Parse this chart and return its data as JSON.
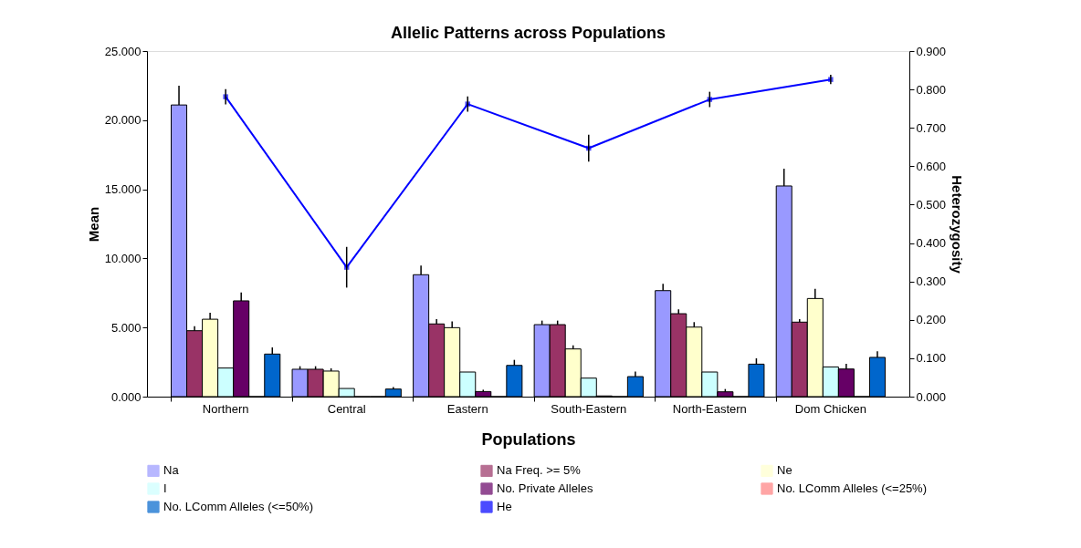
{
  "chart_data": {
    "type": "bar",
    "title": "Allelic Patterns across Populations",
    "xlabel": "Populations",
    "ylabel": "Mean",
    "y2label": "Heterozygosity",
    "categories": [
      "Northern",
      "Central",
      "Eastern",
      "South-Eastern",
      "North-Eastern",
      "Dom Chicken"
    ],
    "series": [
      {
        "name": "Na",
        "color": "#9999ff",
        "values": [
          21.1,
          1.98,
          8.82,
          5.21,
          7.67,
          15.24
        ],
        "errors": [
          [
            21.1,
            22.5
          ],
          [
            1.98,
            2.2
          ],
          [
            8.82,
            9.48
          ],
          [
            5.21,
            5.5
          ],
          [
            7.67,
            8.16
          ],
          [
            15.24,
            16.49
          ]
        ]
      },
      {
        "name": "Na Freq. >= 5%",
        "color": "#993366",
        "values": [
          4.77,
          1.98,
          5.26,
          5.21,
          6.0,
          5.39
        ],
        "errors": [
          [
            4.77,
            5.1
          ],
          [
            1.98,
            2.2
          ],
          [
            5.26,
            5.6
          ],
          [
            5.21,
            5.5
          ],
          [
            6.0,
            6.31
          ],
          [
            5.39,
            5.6
          ]
        ]
      },
      {
        "name": "Ne",
        "color": "#ffffcc",
        "values": [
          5.6,
          1.85,
          4.99,
          3.45,
          5.03,
          7.1
        ],
        "errors": [
          [
            5.6,
            6.07
          ],
          [
            1.85,
            2.05
          ],
          [
            4.99,
            5.45
          ],
          [
            3.45,
            3.71
          ],
          [
            5.03,
            5.39
          ],
          [
            7.1,
            7.8
          ]
        ]
      },
      {
        "name": "I",
        "color": "#ccffff",
        "values": [
          2.07,
          0.59,
          1.78,
          1.34,
          1.78,
          2.15
        ]
      },
      {
        "name": "No. Private Alleles",
        "color": "#660066",
        "values": [
          6.93,
          0,
          0.37,
          0.05,
          0.35,
          2.0
        ],
        "errors": [
          [
            6.93,
            7.54
          ],
          null,
          [
            0.37,
            0.5
          ],
          null,
          [
            0.35,
            0.55
          ],
          [
            2.0,
            2.37
          ]
        ]
      },
      {
        "name": "No. LComm Alleles (<=25%)",
        "color": "#ff8080",
        "values": [
          0,
          0,
          0,
          0,
          0,
          0
        ]
      },
      {
        "name": "No. LComm Alleles (<=50%)",
        "color": "#0066cc",
        "values": [
          3.08,
          0.55,
          2.26,
          1.45,
          2.35,
          2.84
        ],
        "errors": [
          [
            3.08,
            3.56
          ],
          [
            0.55,
            0.7
          ],
          [
            2.26,
            2.66
          ],
          [
            1.45,
            1.82
          ],
          [
            2.35,
            2.77
          ],
          [
            2.84,
            3.28
          ]
        ]
      },
      {
        "name": "He",
        "color": "#0000ff",
        "type": "line",
        "axis": "y2",
        "values": [
          0.781,
          0.337,
          0.762,
          0.647,
          0.774,
          0.826
        ],
        "errors": [
          0.02,
          0.053,
          0.02,
          0.035,
          0.02,
          0.012
        ]
      }
    ],
    "ylim": [
      0,
      25
    ],
    "yticks": [
      {
        "value": 0,
        "label": "0.000"
      },
      {
        "value": 5,
        "label": "5.000"
      },
      {
        "value": 10,
        "label": "10.000"
      },
      {
        "value": 15,
        "label": "15.000"
      },
      {
        "value": 20,
        "label": "20.000"
      },
      {
        "value": 25,
        "label": "25.000"
      }
    ],
    "y2lim": [
      0,
      0.9
    ],
    "y2ticks": [
      {
        "value": 0,
        "label": "0.000"
      },
      {
        "value": 0.1,
        "label": "0.100"
      },
      {
        "value": 0.2,
        "label": "0.200"
      },
      {
        "value": 0.3,
        "label": "0.300"
      },
      {
        "value": 0.4,
        "label": "0.400"
      },
      {
        "value": 0.5,
        "label": "0.500"
      },
      {
        "value": 0.6,
        "label": "0.600"
      },
      {
        "value": 0.7,
        "label": "0.700"
      },
      {
        "value": 0.8,
        "label": "0.800"
      },
      {
        "value": 0.9,
        "label": "0.900"
      }
    ],
    "marker": "square",
    "grid": false,
    "legend": "bottom"
  }
}
